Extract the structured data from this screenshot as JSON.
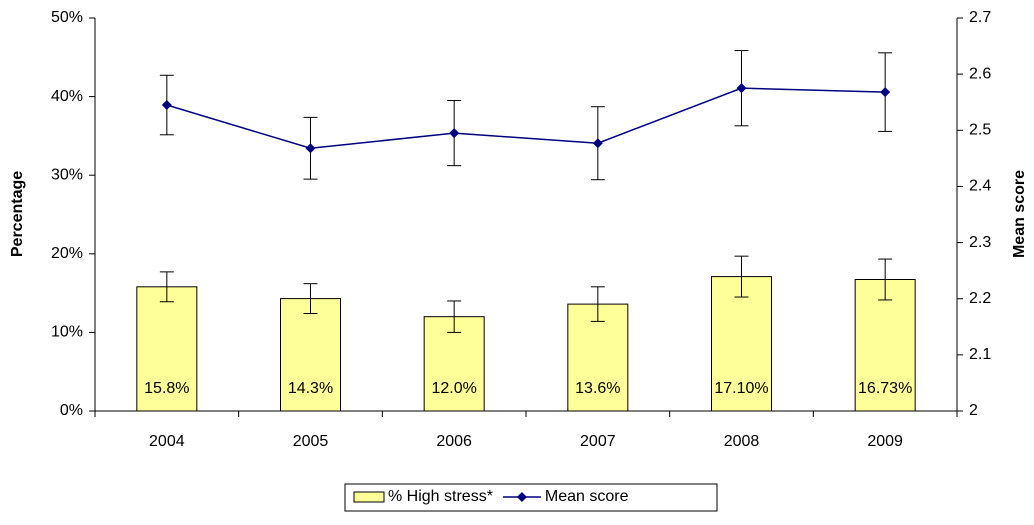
{
  "chart_data": {
    "type": "bar",
    "categories": [
      "2004",
      "2005",
      "2006",
      "2007",
      "2008",
      "2009"
    ],
    "series": [
      {
        "name": "% High stress*",
        "type": "bar",
        "color": "#ffff99",
        "values": [
          15.8,
          14.3,
          12.0,
          13.6,
          17.1,
          16.73
        ],
        "value_labels": [
          "15.8%",
          "14.3%",
          "12.0%",
          "13.6%",
          "17.10%",
          "16.73%"
        ],
        "errors": [
          1.9,
          1.9,
          2.0,
          2.2,
          2.6,
          2.6
        ]
      },
      {
        "name": "Mean score",
        "type": "line",
        "axis": "y2",
        "color": "#000080",
        "values": [
          2.545,
          2.468,
          2.495,
          2.477,
          2.575,
          2.568
        ],
        "errors": [
          0.053,
          0.055,
          0.058,
          0.065,
          0.067,
          0.07
        ]
      }
    ],
    "ylabel": "Percentage",
    "y2label": "Mean score",
    "ylim": [
      0,
      50
    ],
    "yticks": [
      {
        "value": 0,
        "label": "0%"
      },
      {
        "value": 10,
        "label": "10%"
      },
      {
        "value": 20,
        "label": "20%"
      },
      {
        "value": 30,
        "label": "30%"
      },
      {
        "value": 40,
        "label": "40%"
      },
      {
        "value": 50,
        "label": "50%"
      }
    ],
    "y2lim": [
      2,
      2.7
    ],
    "y2ticks": [
      2,
      2.1,
      2.2,
      2.3,
      2.4,
      2.5,
      2.6,
      2.7
    ],
    "grid": false,
    "legend": "bottom"
  }
}
